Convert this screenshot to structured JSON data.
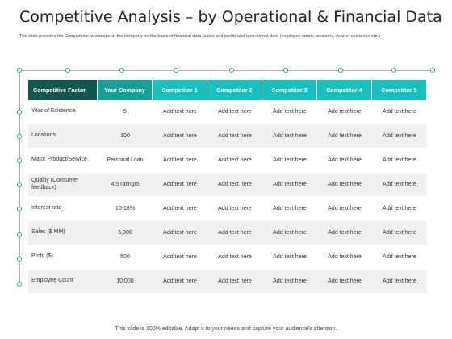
{
  "slide": {
    "title": "Competitive Analysis – by Operational & Financial Data",
    "subtitle": "The slide provides the Competitive landscape of the company on the basis of financial data (sales and profit) and operational data (employee count, locations, year of existence etc.)",
    "footer": "This slide is 100% editable. Adapt it to your needs and capture your audience's attention."
  },
  "table": {
    "headers": [
      "Competitive Factor",
      "Your Company",
      "Competitor 1",
      "Competitor 2",
      "Competitor 3",
      "Competitor 4",
      "Competitor 5"
    ],
    "rows": [
      [
        "Year of Existence",
        "5",
        "Add text here",
        "Add text here",
        "Add text here",
        "Add text here",
        "Add text here"
      ],
      [
        "Locations",
        "100",
        "Add text here",
        "Add text here",
        "Add text here",
        "Add text here",
        "Add text here"
      ],
      [
        "Major Product/Service",
        "Personal Loan",
        "Add text here",
        "Add text here",
        "Add text here",
        "Add text here",
        "Add text here"
      ],
      [
        "Quality (Consumer feedback)",
        "4.5 rating/5",
        "Add text here",
        "Add text here",
        "Add text here",
        "Add text here",
        "Add text here"
      ],
      [
        "Interest rate",
        "10-18%",
        "Add text here",
        "Add text here",
        "Add text here",
        "Add text here",
        "Add text here"
      ],
      [
        "Sales ($ MM)",
        "5,000",
        "Add text here",
        "Add text here",
        "Add text here",
        "Add text here",
        "Add text here"
      ],
      [
        "Profit ($)",
        "500",
        "Add text here",
        "Add text here",
        "Add text here",
        "Add text here",
        "Add text here"
      ],
      [
        "Employee Count",
        "10,000",
        "Add text here",
        "Add text here",
        "Add text here",
        "Add text here",
        "Add text here"
      ]
    ]
  },
  "colors": {
    "header_first": "#10574f",
    "header_company": "#179e96",
    "header_competitor": "#17c0be",
    "timeline_dot": "#2a9d8f"
  }
}
